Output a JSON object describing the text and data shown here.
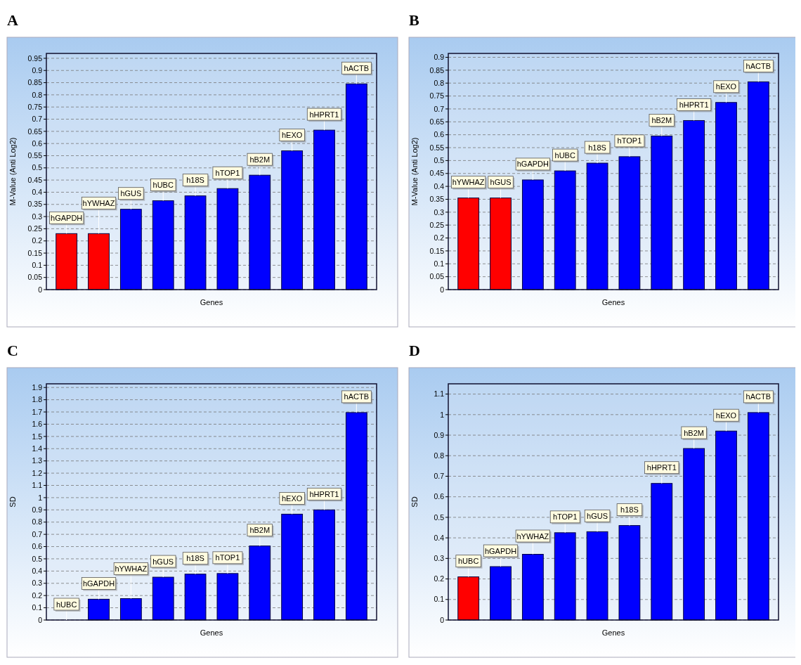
{
  "chart_data": [
    {
      "type": "bar",
      "title": "A",
      "xlabel": "Genes",
      "ylabel": "M-Value (Anti Log2)",
      "categories": [
        "hGAPDH",
        "hYWHAZ",
        "hGUS",
        "hUBC",
        "h18S",
        "hTOP1",
        "hB2M",
        "hEXO",
        "hHPRT1",
        "hACTB"
      ],
      "values": [
        0.23,
        0.23,
        0.33,
        0.365,
        0.385,
        0.415,
        0.47,
        0.57,
        0.655,
        0.845
      ],
      "colors": [
        "#ff0000",
        "#ff0000",
        "#0000ff",
        "#0000ff",
        "#0000ff",
        "#0000ff",
        "#0000ff",
        "#0000ff",
        "#0000ff",
        "#0000ff"
      ],
      "ylim": [
        0,
        0.97
      ],
      "yticks": [
        0,
        0.05,
        0.1,
        0.15,
        0.2,
        0.25,
        0.3,
        0.35,
        0.4,
        0.45,
        0.5,
        0.55,
        0.6,
        0.65,
        0.7,
        0.75,
        0.8,
        0.85,
        0.9,
        0.95
      ],
      "grid": "y"
    },
    {
      "type": "bar",
      "title": "B",
      "xlabel": "Genes",
      "ylabel": "M-Value (Anti Log2)",
      "categories": [
        "hYWHAZ",
        "hGUS",
        "hGAPDH",
        "hUBC",
        "h18S",
        "hTOP1",
        "hB2M",
        "hHPRT1",
        "hEXO",
        "hACTB"
      ],
      "values": [
        0.355,
        0.355,
        0.425,
        0.46,
        0.49,
        0.515,
        0.595,
        0.655,
        0.725,
        0.805
      ],
      "colors": [
        "#ff0000",
        "#ff0000",
        "#0000ff",
        "#0000ff",
        "#0000ff",
        "#0000ff",
        "#0000ff",
        "#0000ff",
        "#0000ff",
        "#0000ff"
      ],
      "ylim": [
        0,
        0.915
      ],
      "yticks": [
        0,
        0.05,
        0.1,
        0.15,
        0.2,
        0.25,
        0.3,
        0.35,
        0.4,
        0.45,
        0.5,
        0.55,
        0.6,
        0.65,
        0.7,
        0.75,
        0.8,
        0.85,
        0.9
      ],
      "grid": "y"
    },
    {
      "type": "bar",
      "title": "C",
      "xlabel": "Genes",
      "ylabel": "SD",
      "categories": [
        "hUBC",
        "hGAPDH",
        "hYWHAZ",
        "hGUS",
        "h18S",
        "hTOP1",
        "hB2M",
        "hEXO",
        "hHPRT1",
        "hACTB"
      ],
      "values": [
        0,
        0.17,
        0.175,
        0.35,
        0.375,
        0.38,
        0.605,
        0.865,
        0.9,
        1.695
      ],
      "colors": [
        "#ff0000",
        "#0000ff",
        "#0000ff",
        "#0000ff",
        "#0000ff",
        "#0000ff",
        "#0000ff",
        "#0000ff",
        "#0000ff",
        "#0000ff"
      ],
      "ylim": [
        0,
        1.93
      ],
      "yticks": [
        0,
        0.1,
        0.2,
        0.3,
        0.4,
        0.5,
        0.6,
        0.7,
        0.8,
        0.9,
        1,
        1.1,
        1.2,
        1.3,
        1.4,
        1.5,
        1.6,
        1.7,
        1.8,
        1.9
      ],
      "grid": "y"
    },
    {
      "type": "bar",
      "title": "D",
      "xlabel": "Genes",
      "ylabel": "SD",
      "categories": [
        "hUBC",
        "hGAPDH",
        "hYWHAZ",
        "hTOP1",
        "hGUS",
        "h18S",
        "hHPRT1",
        "hB2M",
        "hEXO",
        "hACTB"
      ],
      "values": [
        0.21,
        0.26,
        0.32,
        0.425,
        0.43,
        0.46,
        0.665,
        0.835,
        0.92,
        1.01
      ],
      "colors": [
        "#ff0000",
        "#0000ff",
        "#0000ff",
        "#0000ff",
        "#0000ff",
        "#0000ff",
        "#0000ff",
        "#0000ff",
        "#0000ff",
        "#0000ff"
      ],
      "ylim": [
        0,
        1.15
      ],
      "yticks": [
        0,
        0.1,
        0.2,
        0.3,
        0.4,
        0.5,
        0.6,
        0.7,
        0.8,
        0.9,
        1,
        1.1
      ],
      "grid": "y"
    }
  ]
}
